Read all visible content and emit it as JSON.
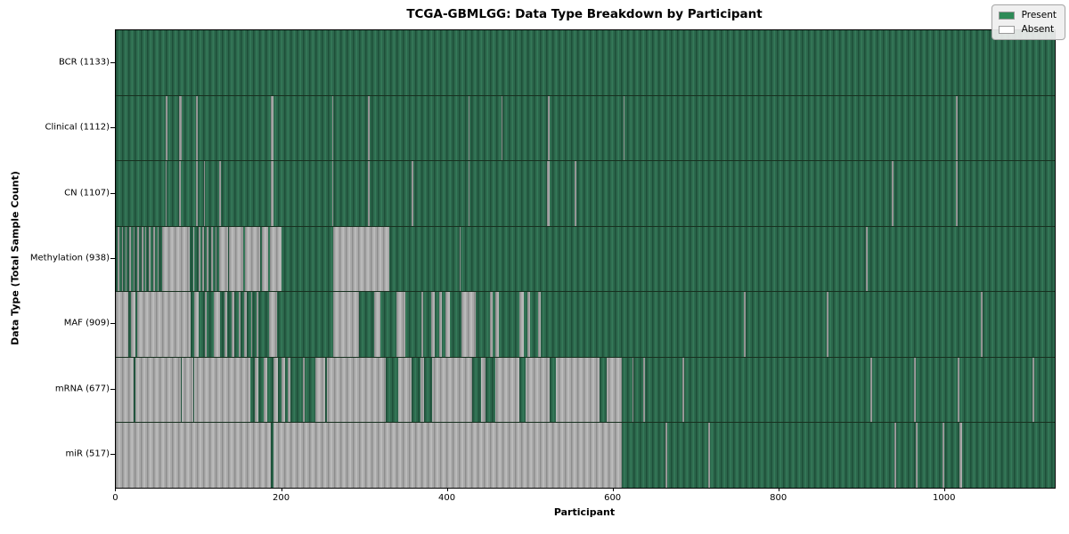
{
  "chart_data": {
    "type": "heatmap",
    "title": "TCGA-GBMLGG: Data Type Breakdown by Participant",
    "xlabel": "Participant",
    "ylabel": "Data Type (Total Sample Count)",
    "x_max": 1133,
    "x_ticks": [
      0,
      200,
      400,
      600,
      800,
      1000
    ],
    "grid": false,
    "legend_position": "upper right",
    "legend": [
      {
        "label": "Present",
        "color": "#2e8b57"
      },
      {
        "label": "Absent",
        "color": "#ffffff"
      }
    ],
    "colors": {
      "present_fill": "#2d6b4d",
      "present_edge": "#1e4f39",
      "absent_fill": "#aeaeae",
      "absent_edge": "#8d8d8d",
      "axis": "#000000"
    },
    "rows": [
      {
        "label": "BCR (1133)",
        "data_type": "BCR",
        "total_samples": 1133,
        "absent": [],
        "present_overrides": []
      },
      {
        "label": "Clinical (1112)",
        "data_type": "Clinical",
        "total_samples": 1112,
        "absent": [
          [
            60,
            62
          ],
          [
            76,
            78
          ],
          [
            79,
            80
          ],
          [
            97,
            99
          ],
          [
            187,
            190
          ],
          [
            261,
            262
          ],
          [
            304,
            306
          ],
          [
            426,
            427
          ],
          [
            465,
            467
          ],
          [
            521,
            523
          ],
          [
            613,
            614
          ],
          [
            1014,
            1016
          ]
        ],
        "present_overrides": []
      },
      {
        "label": "CN (1107)",
        "data_type": "CN",
        "total_samples": 1107,
        "absent": [
          [
            60,
            61
          ],
          [
            76,
            78
          ],
          [
            97,
            99
          ],
          [
            106,
            108
          ],
          [
            125,
            127
          ],
          [
            187,
            190
          ],
          [
            261,
            262
          ],
          [
            304,
            306
          ],
          [
            357,
            359
          ],
          [
            426,
            427
          ],
          [
            520,
            523
          ],
          [
            554,
            556
          ],
          [
            936,
            938
          ],
          [
            1014,
            1016
          ]
        ],
        "present_overrides": []
      },
      {
        "label": "Methylation (938)",
        "data_type": "Methylation",
        "total_samples": 938,
        "absent": [
          [
            2,
            4
          ],
          [
            7,
            9
          ],
          [
            12,
            13
          ],
          [
            16,
            18
          ],
          [
            21,
            23
          ],
          [
            26,
            28
          ],
          [
            31,
            33
          ],
          [
            36,
            37
          ],
          [
            40,
            42
          ],
          [
            45,
            47
          ],
          [
            50,
            52
          ],
          [
            56,
            89
          ],
          [
            93,
            94
          ],
          [
            100,
            102
          ],
          [
            104,
            106
          ],
          [
            110,
            112
          ],
          [
            115,
            117
          ],
          [
            120,
            122
          ],
          [
            125,
            135
          ],
          [
            136,
            154
          ],
          [
            156,
            174
          ],
          [
            176,
            184
          ],
          [
            186,
            200
          ],
          [
            262,
            330
          ],
          [
            415,
            416
          ],
          [
            905,
            907
          ]
        ],
        "present_overrides": []
      },
      {
        "label": "MAF (909)",
        "data_type": "MAF",
        "total_samples": 909,
        "absent": [
          [
            0,
            15
          ],
          [
            18,
            24
          ],
          [
            26,
            90
          ],
          [
            95,
            100
          ],
          [
            107,
            110
          ],
          [
            118,
            126
          ],
          [
            131,
            134
          ],
          [
            140,
            143
          ],
          [
            148,
            151
          ],
          [
            155,
            158
          ],
          [
            163,
            165
          ],
          [
            170,
            172
          ],
          [
            185,
            195
          ],
          [
            262,
            294
          ],
          [
            312,
            319
          ],
          [
            339,
            349
          ],
          [
            369,
            371
          ],
          [
            381,
            385
          ],
          [
            390,
            393
          ],
          [
            398,
            403
          ],
          [
            417,
            434
          ],
          [
            452,
            455
          ],
          [
            458,
            462
          ],
          [
            487,
            492
          ],
          [
            497,
            500
          ],
          [
            510,
            513
          ],
          [
            758,
            760
          ],
          [
            858,
            860
          ],
          [
            1044,
            1046
          ]
        ],
        "present_overrides": []
      },
      {
        "label": "mRNA (677)",
        "data_type": "mRNA",
        "total_samples": 677,
        "absent": [
          [
            0,
            162
          ],
          [
            168,
            172
          ],
          [
            178,
            183
          ],
          [
            190,
            196
          ],
          [
            200,
            204
          ],
          [
            208,
            211
          ],
          [
            226,
            228
          ],
          [
            241,
            611
          ],
          [
            623,
            625
          ],
          [
            636,
            638
          ],
          [
            684,
            686
          ],
          [
            911,
            913
          ],
          [
            963,
            965
          ],
          [
            1016,
            1018
          ],
          [
            1106,
            1108
          ]
        ],
        "present_overrides": [
          [
            22,
            24
          ],
          [
            78,
            80
          ],
          [
            93,
            95
          ],
          [
            253,
            255
          ],
          [
            326,
            341
          ],
          [
            357,
            368
          ],
          [
            372,
            382
          ],
          [
            430,
            441
          ],
          [
            446,
            458
          ],
          [
            487,
            495
          ],
          [
            524,
            531
          ],
          [
            584,
            592
          ]
        ]
      },
      {
        "label": "miR (517)",
        "data_type": "miR",
        "total_samples": 517,
        "absent": [
          [
            0,
            611
          ],
          [
            663,
            665
          ],
          [
            715,
            717
          ],
          [
            940,
            942
          ],
          [
            965,
            967
          ],
          [
            998,
            1000
          ],
          [
            1018,
            1021
          ]
        ],
        "present_overrides": [
          [
            187,
            190
          ]
        ]
      }
    ]
  }
}
